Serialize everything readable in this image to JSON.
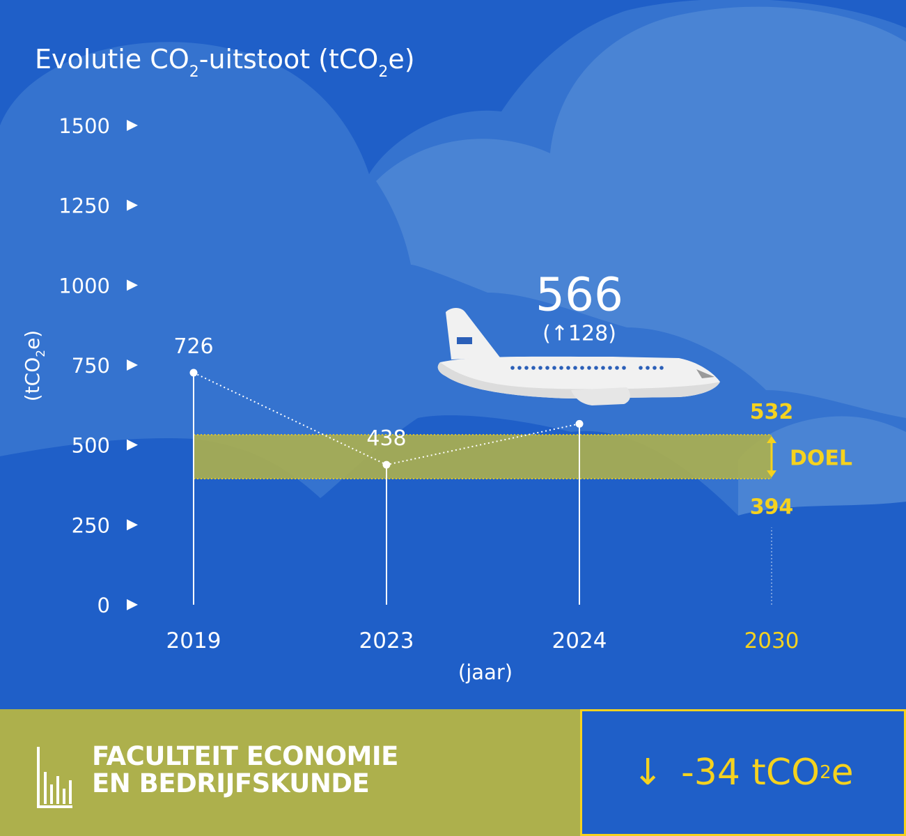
{
  "chart_data": {
    "type": "line",
    "title": {
      "part1": "Evolutie CO",
      "sub1": "2",
      "part2": "-uitstoot (tCO",
      "sub2": "2",
      "part3": "e)"
    },
    "ylabel": {
      "part1": "(tCO",
      "sub": "2",
      "part2": "e)"
    },
    "xlabel": "(jaar)",
    "yticks": [
      0,
      250,
      500,
      750,
      1000,
      1250,
      1500
    ],
    "ylim": [
      0,
      1500
    ],
    "categories": [
      "2019",
      "2023",
      "2024",
      "2030"
    ],
    "values": [
      726,
      438,
      566,
      null
    ],
    "value_labels": [
      "726",
      "438",
      "566",
      ""
    ],
    "highlight": {
      "value_label": "566",
      "change_label": "(↑128)"
    },
    "target": {
      "label": "DOEL",
      "low": 394,
      "high": 532,
      "low_label": "394",
      "high_label": "532",
      "year": "2030"
    }
  },
  "footer": {
    "faculty_line1": "FACULTEIT ECONOMIE",
    "faculty_line2": "EN BEDRIJFSKUNDE",
    "reduction": {
      "arrow": "↓",
      "value": "-34 tCO",
      "sub": "2",
      "unit": "e"
    }
  },
  "colors": {
    "background": "#1f5fc8",
    "cloud_light": "#4a84d4",
    "cloud_mid": "#3573cf",
    "white": "#ffffff",
    "yellow": "#f5d21f",
    "olive": "#adb04c",
    "band": "#adb04c"
  },
  "icons": [
    "airplane-icon",
    "bar-chart-icon",
    "down-arrow-icon"
  ]
}
